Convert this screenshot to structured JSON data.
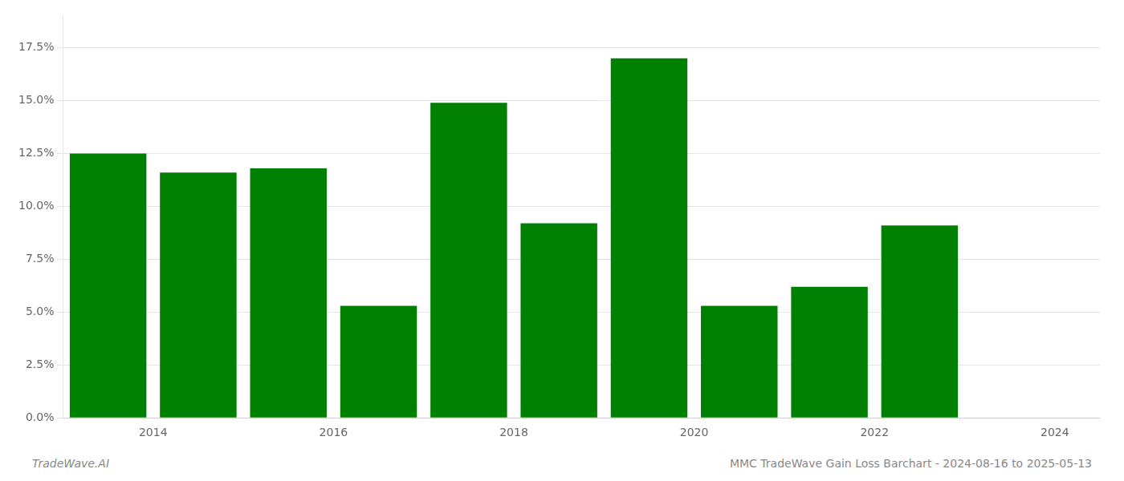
{
  "chart_data": {
    "type": "bar",
    "x": [
      2013.5,
      2014.5,
      2015.5,
      2016.5,
      2017.5,
      2018.5,
      2019.5,
      2020.5,
      2021.5,
      2022.5
    ],
    "values": [
      0.125,
      0.116,
      0.118,
      0.053,
      0.149,
      0.092,
      0.17,
      0.053,
      0.062,
      0.091
    ],
    "color": "#008000",
    "xlim": [
      2013.0,
      2024.5
    ],
    "xticks": [
      2014,
      2016,
      2018,
      2020,
      2022,
      2024
    ],
    "ylim": [
      0,
      0.19
    ],
    "yticks": [
      {
        "value": 0.0,
        "label": "0.0%"
      },
      {
        "value": 0.025,
        "label": "2.5%"
      },
      {
        "value": 0.05,
        "label": "5.0%"
      },
      {
        "value": 0.075,
        "label": "7.5%"
      },
      {
        "value": 0.1,
        "label": "10.0%"
      },
      {
        "value": 0.125,
        "label": "12.5%"
      },
      {
        "value": 0.15,
        "label": "15.0%"
      },
      {
        "value": 0.175,
        "label": "17.5%"
      }
    ],
    "grid": "y",
    "annotations": [
      "TradeWave.AI",
      "MMC TradeWave Gain Loss Barchart - 2024-08-16 to 2025-05-13"
    ]
  }
}
